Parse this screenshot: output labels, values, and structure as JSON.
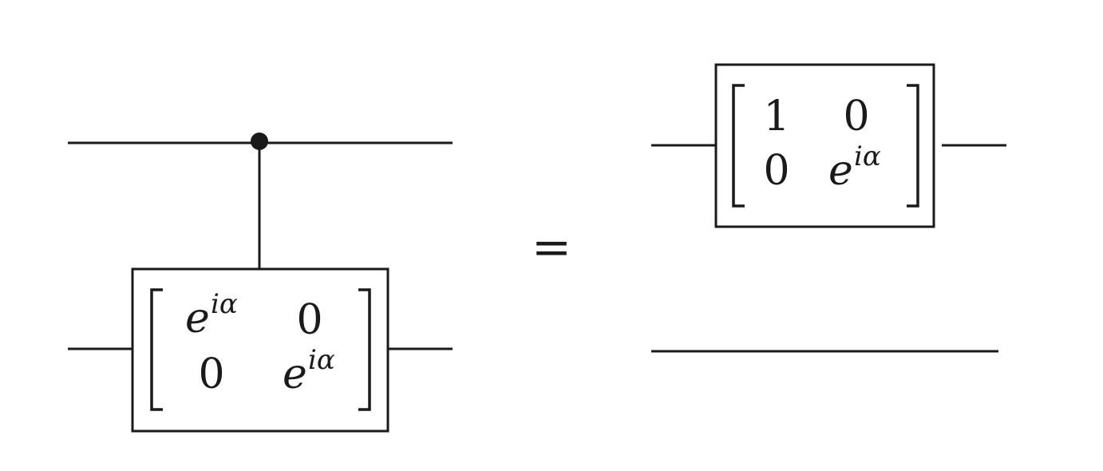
{
  "left_circuit": {
    "control_dot": "control-dot",
    "gate_matrix": [
      [
        {
          "base": "e",
          "sup": "iα"
        },
        {
          "base": "0"
        }
      ],
      [
        {
          "base": "0"
        },
        {
          "base": "e",
          "sup": "iα"
        }
      ]
    ]
  },
  "equals_sign": "=",
  "right_circuit": {
    "gate_matrix": [
      [
        {
          "base": "1"
        },
        {
          "base": "0"
        }
      ],
      [
        {
          "base": "0"
        },
        {
          "base": "e",
          "sup": "iα"
        }
      ]
    ]
  }
}
